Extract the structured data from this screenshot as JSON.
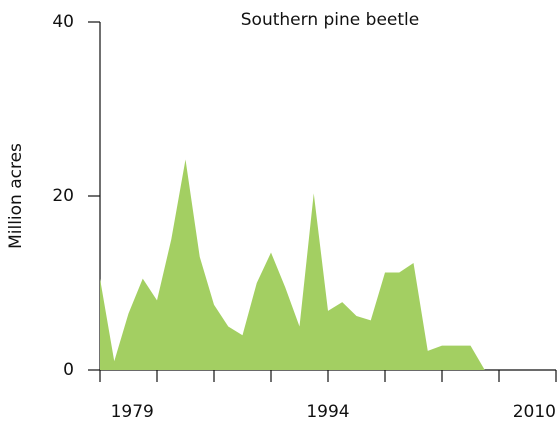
{
  "chart_data": {
    "type": "area",
    "title": "Southern pine beetle",
    "y_label": "Million acres",
    "x": [
      1978,
      1979,
      1980,
      1981,
      1982,
      1983,
      1984,
      1985,
      1986,
      1987,
      1988,
      1989,
      1990,
      1991,
      1992,
      1993,
      1994,
      1995,
      1996,
      1997,
      1998,
      1999,
      2000,
      2001,
      2002,
      2003,
      2004,
      2005
    ],
    "values": [
      10.5,
      1,
      6.5,
      10.5,
      8,
      15,
      24.2,
      13,
      7.5,
      5,
      4,
      10,
      13.5,
      9.5,
      5,
      20.3,
      6.8,
      7.8,
      6.2,
      5.7,
      11.2,
      11.2,
      12.3,
      2.2,
      2.8,
      2.8,
      2.8,
      0
    ],
    "color": "#a3cf62",
    "xlim": [
      1978,
      2010
    ],
    "xticks": [
      1979,
      1994,
      2010
    ],
    "xminorticks": [
      1978,
      1982,
      1986,
      1990,
      1994,
      1998,
      2002,
      2006,
      2010
    ],
    "ylim": [
      0,
      40
    ],
    "yticks": [
      0,
      20,
      40
    ]
  }
}
